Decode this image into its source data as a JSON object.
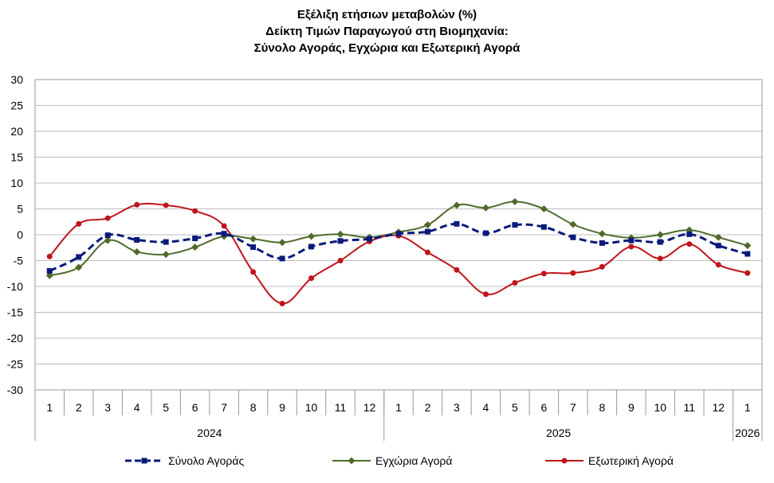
{
  "title_lines": [
    "Εξέλιξη ετήσιων μεταβολών (%)",
    "Δείκτη Τιμών Παραγωγού στη Βιομηχανία:",
    "Σύνολο Αγοράς, Εγχώρια και Εξωτερική Αγορά"
  ],
  "chart_data": {
    "type": "line",
    "title": "Εξέλιξη ετήσιων μεταβολών (%) Δείκτη Τιμών Παραγωγού στη Βιομηχανία: Σύνολο Αγοράς, Εγχώρια και Εξωτερική Αγορά",
    "categories": [
      "1",
      "2",
      "3",
      "4",
      "5",
      "6",
      "7",
      "8",
      "9",
      "10",
      "11",
      "12",
      "1",
      "2",
      "3",
      "4",
      "5",
      "6",
      "7",
      "8",
      "9",
      "10",
      "11",
      "12",
      "1"
    ],
    "year_groups": [
      {
        "label": "2024",
        "start": 0,
        "end": 11
      },
      {
        "label": "2025",
        "start": 12,
        "end": 23
      },
      {
        "label": "2026",
        "start": 24,
        "end": 24
      }
    ],
    "ylim": [
      -30,
      30
    ],
    "yticks": [
      -30,
      -25,
      -20,
      -15,
      -10,
      -5,
      0,
      5,
      10,
      15,
      20,
      25,
      30
    ],
    "grid": true,
    "legend_position": "bottom",
    "series": [
      {
        "name": "Σύνολο Αγοράς",
        "color": "#0a1a7a",
        "style": "dashed",
        "marker": "square",
        "values": [
          -7.0,
          -4.3,
          -0.1,
          -1.0,
          -1.4,
          -0.7,
          0.2,
          -2.4,
          -4.6,
          -2.3,
          -1.2,
          -0.8,
          0.2,
          0.6,
          2.1,
          0.3,
          1.9,
          1.5,
          -0.5,
          -1.6,
          -1.1,
          -1.4,
          0.1,
          -2.1,
          -3.7
        ]
      },
      {
        "name": "Εγχώρια Αγορά",
        "color": "#4e6b2a",
        "style": "solid",
        "marker": "diamond",
        "values": [
          -7.9,
          -6.3,
          -1.1,
          -3.3,
          -3.8,
          -2.4,
          -0.3,
          -0.8,
          -1.5,
          -0.3,
          0.1,
          -0.5,
          0.5,
          1.9,
          5.7,
          5.2,
          6.4,
          5.0,
          2.0,
          0.2,
          -0.6,
          0.0,
          0.9,
          -0.5,
          -2.1
        ]
      },
      {
        "name": "Εξωτερική Αγορά",
        "color": "#c0141b",
        "style": "solid",
        "marker": "circle",
        "values": [
          -4.2,
          2.1,
          3.2,
          5.8,
          5.7,
          4.6,
          1.7,
          -7.2,
          -13.3,
          -8.4,
          -5.0,
          -1.3,
          -0.2,
          -3.4,
          -6.8,
          -11.5,
          -9.3,
          -7.5,
          -7.4,
          -6.2,
          -2.3,
          -4.6,
          -1.8,
          -5.8,
          -7.4
        ]
      }
    ]
  }
}
